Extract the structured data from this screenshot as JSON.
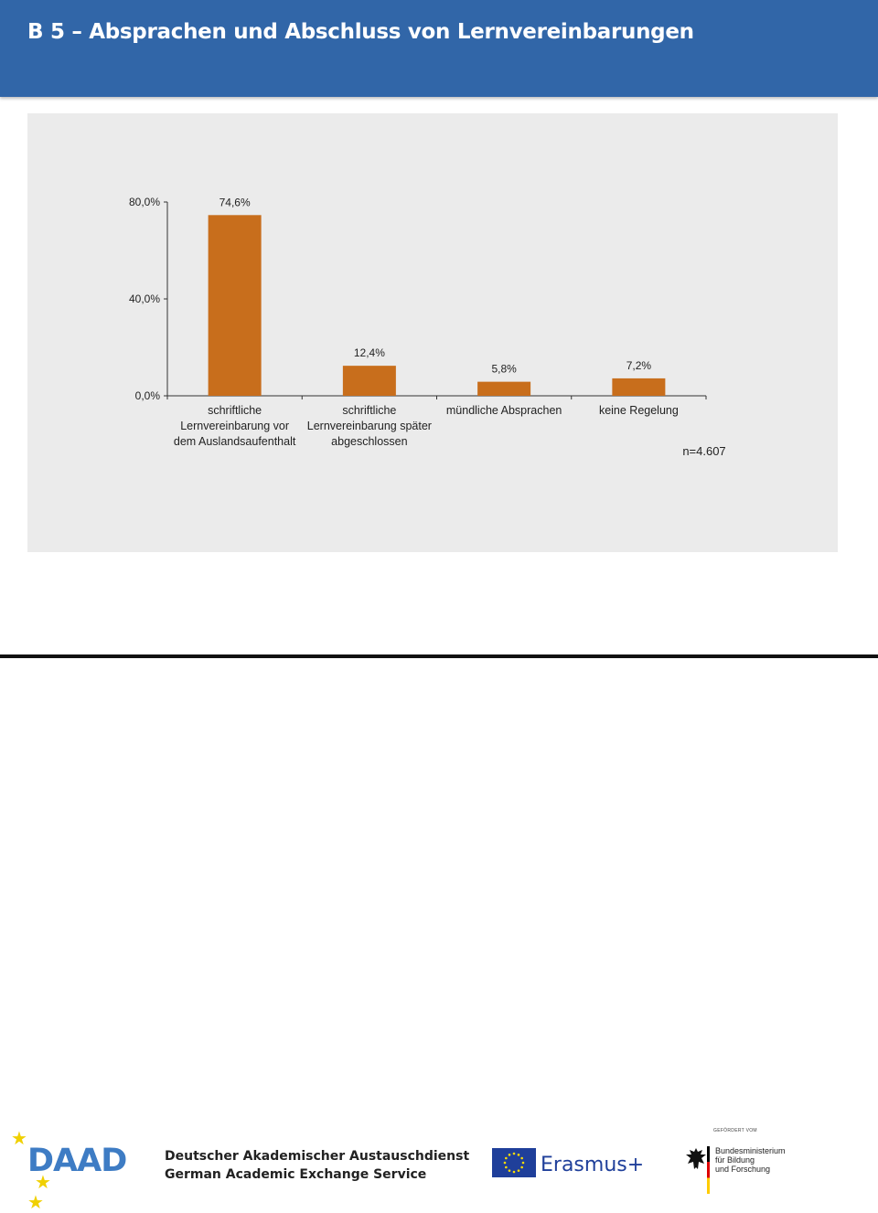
{
  "header": {
    "title": "B 5 – Absprachen und Abschluss von Lernvereinbarungen"
  },
  "chart_data": {
    "type": "bar",
    "categories": [
      [
        "schriftliche",
        "Lernvereinbarung vor",
        "dem Auslandsaufenthalt"
      ],
      [
        "schriftliche",
        "Lernvereinbarung später",
        "abgeschlossen"
      ],
      [
        "mündliche Absprachen"
      ],
      [
        "keine Regelung"
      ]
    ],
    "values": [
      74.6,
      12.4,
      5.8,
      7.2
    ],
    "value_labels": [
      "74,6%",
      "12,4%",
      "5,8%",
      "7,2%"
    ],
    "ylim": [
      0,
      80
    ],
    "yticks": [
      0,
      40,
      80
    ],
    "ytick_labels": [
      "0,0%",
      "40,0%",
      "80,0%"
    ],
    "annotation": "n=4.607",
    "bar_color": "#c86e1c",
    "grid": false
  },
  "footer": {
    "daad_logo": "DAAD",
    "daad_line1": "Deutscher Akademischer Austauschdienst",
    "daad_line2": "German Academic Exchange Service",
    "erasmus_label": "Erasmus+",
    "bmbf_funded_by": "GEFÖRDERT VOM",
    "bmbf_line1": "Bundesministerium",
    "bmbf_line2": "für Bildung",
    "bmbf_line3": "und Forschung"
  }
}
